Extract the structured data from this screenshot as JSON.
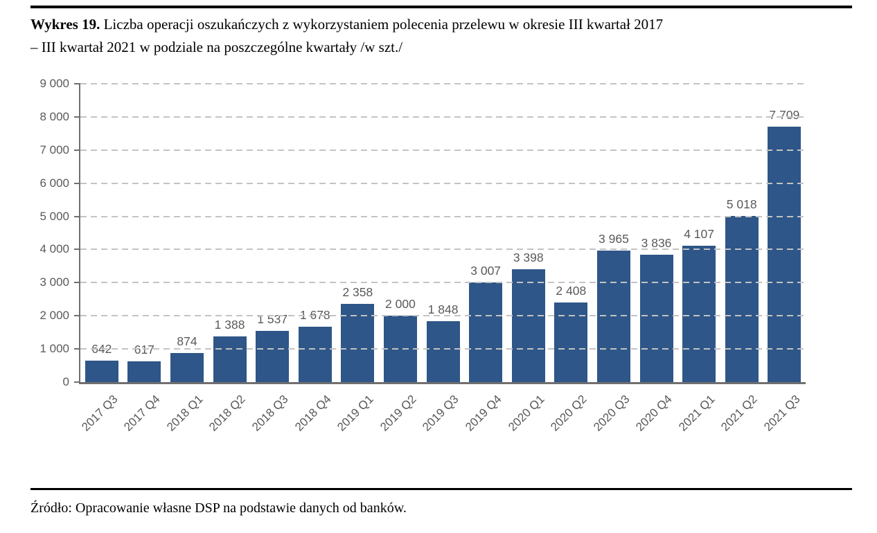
{
  "document": {
    "caption_label": "Wykres 19.",
    "caption_text": "Liczba operacji oszukańczych z wykorzystaniem polecenia przelewu w okresie III kwartał 2017\n– III kwartał 2021 w podziale na poszczególne kwartały /w szt./",
    "source": "Źródło: Opracowanie własne DSP na podstawie danych od banków."
  },
  "chart_data": {
    "type": "bar",
    "title": "Wykres 19. Liczba operacji oszukańczych z wykorzystaniem polecenia przelewu w okresie III kwartał 2017 – III kwartał 2021 w podziale na poszczególne kwartały /w szt./",
    "categories": [
      "2017 Q3",
      "2017 Q4",
      "2018 Q1",
      "2018 Q2",
      "2018 Q3",
      "2018 Q4",
      "2019 Q1",
      "2019 Q2",
      "2019 Q3",
      "2019 Q4",
      "2020 Q1",
      "2020 Q2",
      "2020 Q3",
      "2020 Q4",
      "2021 Q1",
      "2021 Q2",
      "2021 Q3"
    ],
    "values": [
      642,
      617,
      874,
      1388,
      1537,
      1678,
      2358,
      2000,
      1848,
      3007,
      3398,
      2408,
      3965,
      3836,
      4107,
      5018,
      7709
    ],
    "bar_labels": [
      "642",
      "617",
      "874",
      "1 388",
      "1 537",
      "1 678",
      "2 358",
      "2 000",
      "1 848",
      "3 007",
      "3 398",
      "2 408",
      "3 965",
      "3 836",
      "4 107",
      "5 018",
      "7 709"
    ],
    "y_ticks": [
      "0",
      "1 000",
      "2 000",
      "3 000",
      "4 000",
      "5 000",
      "6 000",
      "7 000",
      "8 000",
      "9 000"
    ],
    "ylim": [
      0,
      9000
    ],
    "xlabel": "",
    "ylabel": "",
    "units": "szt.",
    "grid": "horizontal-dashed",
    "legend": "none"
  },
  "colors": {
    "bar": "#2E5688",
    "grid": "#C3C3C3",
    "axis": "#6F6F6F",
    "chart_text": "#595959",
    "rule": "#000000",
    "background": "#FFFFFF"
  }
}
